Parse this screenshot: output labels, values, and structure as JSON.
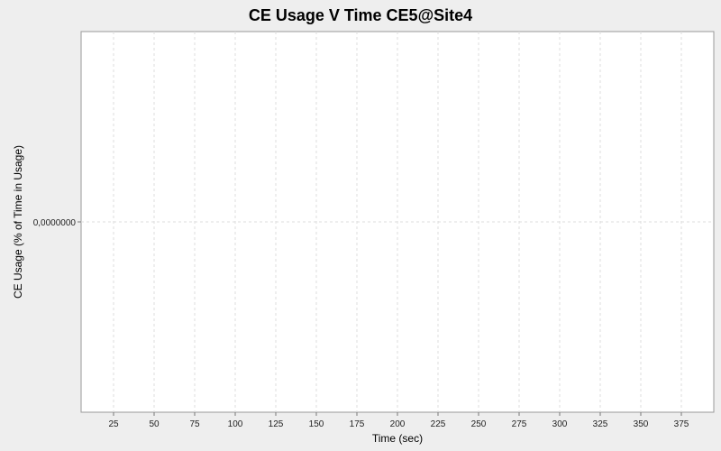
{
  "chart_data": {
    "type": "line",
    "title": "CE Usage V Time CE5@Site4",
    "xlabel": "Time (sec)",
    "ylabel": "CE Usage (% of Time in Usage)",
    "x_ticks": [
      25,
      50,
      75,
      100,
      125,
      150,
      175,
      200,
      225,
      250,
      275,
      300,
      325,
      350,
      375
    ],
    "x_tick_labels": [
      "25",
      "50",
      "75",
      "100",
      "125",
      "150",
      "175",
      "200",
      "225",
      "250",
      "275",
      "300",
      "325",
      "350",
      "375"
    ],
    "y_ticks": [
      0
    ],
    "y_tick_labels": [
      "0,0000000"
    ],
    "xlim": [
      5,
      395
    ],
    "ylim": [
      -1,
      1
    ],
    "grid": true,
    "series": []
  }
}
